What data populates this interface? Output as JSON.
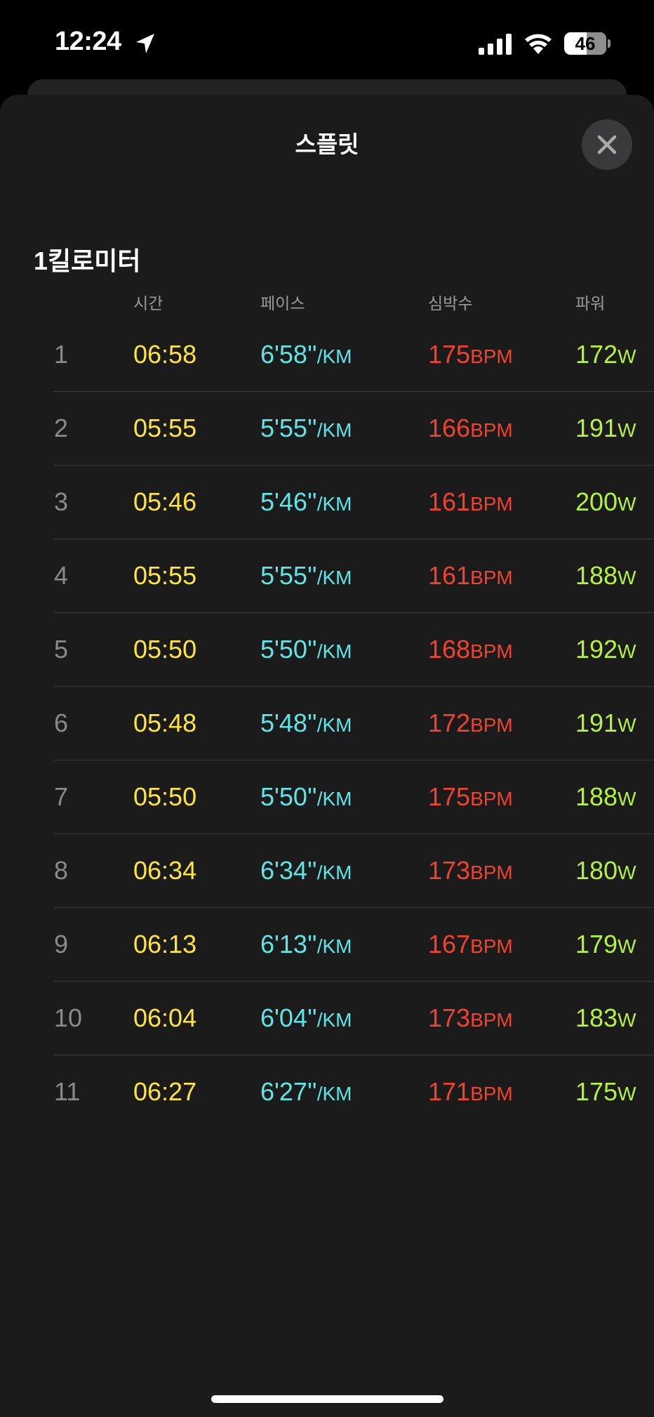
{
  "status_bar": {
    "time": "12:24",
    "battery": "46"
  },
  "sheet": {
    "title": "스플릿",
    "close_icon": "close-icon"
  },
  "section": {
    "title": "1킬로미터"
  },
  "columns": [
    "시간",
    "페이스",
    "심박수",
    "파워"
  ],
  "units": {
    "pace": "/KM",
    "heart_rate": "BPM",
    "power": "W"
  },
  "colors": {
    "time": "#ffe53b",
    "pace": "#5ee6e6",
    "heart_rate": "#f0432e",
    "power": "#b5f23c"
  },
  "splits": [
    {
      "n": "1",
      "time": "06:58",
      "pace": "6'58''",
      "hr": "175",
      "power": "172"
    },
    {
      "n": "2",
      "time": "05:55",
      "pace": "5'55''",
      "hr": "166",
      "power": "191"
    },
    {
      "n": "3",
      "time": "05:46",
      "pace": "5'46''",
      "hr": "161",
      "power": "200"
    },
    {
      "n": "4",
      "time": "05:55",
      "pace": "5'55''",
      "hr": "161",
      "power": "188"
    },
    {
      "n": "5",
      "time": "05:50",
      "pace": "5'50''",
      "hr": "168",
      "power": "192"
    },
    {
      "n": "6",
      "time": "05:48",
      "pace": "5'48''",
      "hr": "172",
      "power": "191"
    },
    {
      "n": "7",
      "time": "05:50",
      "pace": "5'50''",
      "hr": "175",
      "power": "188"
    },
    {
      "n": "8",
      "time": "06:34",
      "pace": "6'34''",
      "hr": "173",
      "power": "180"
    },
    {
      "n": "9",
      "time": "06:13",
      "pace": "6'13''",
      "hr": "167",
      "power": "179"
    },
    {
      "n": "10",
      "time": "06:04",
      "pace": "6'04''",
      "hr": "173",
      "power": "183"
    },
    {
      "n": "11",
      "time": "06:27",
      "pace": "6'27''",
      "hr": "171",
      "power": "175"
    }
  ]
}
